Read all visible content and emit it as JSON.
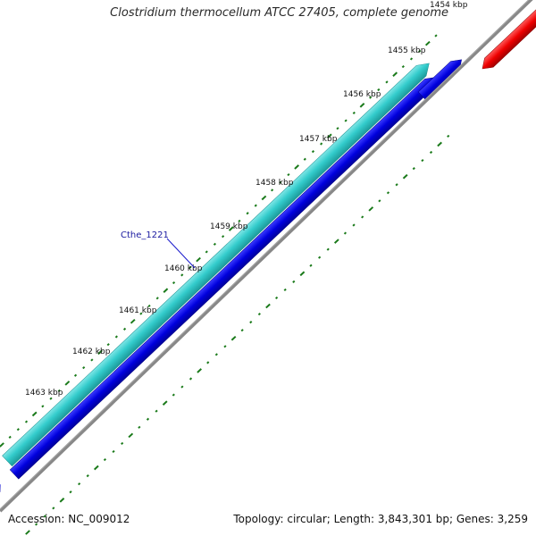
{
  "map": {
    "title": "Clostridium thermocellum ATCC 27405, complete genome",
    "accession_text": "Accession: NC_009012",
    "summary_text": "Topology: circular; Length: 3,843,301 bp; Genes: 3,259"
  },
  "ruler": {
    "ticks": [
      {
        "kbp": 1454,
        "label": "1454 kbp"
      },
      {
        "kbp": 1455,
        "label": "1455 kbp"
      },
      {
        "kbp": 1456,
        "label": "1456 kbp"
      },
      {
        "kbp": 1457,
        "label": "1457 kbp"
      },
      {
        "kbp": 1458,
        "label": "1458 kbp"
      },
      {
        "kbp": 1459,
        "label": "1459 kbp"
      },
      {
        "kbp": 1460,
        "label": "1460 kbp"
      },
      {
        "kbp": 1461,
        "label": "1461 kbp"
      },
      {
        "kbp": 1462,
        "label": "1462 kbp"
      },
      {
        "kbp": 1463,
        "label": "1463 kbp"
      }
    ]
  },
  "genes": [
    {
      "name": "Cthe_1221",
      "label": "Cthe_1221",
      "color": "#33cccc",
      "track": "highlight"
    }
  ],
  "colors": {
    "highlight_gene": "#33cccc",
    "forward_gene": "#0000dd",
    "reverse_gene": "#ee0000",
    "backbone": "#888888",
    "tick_mark": "#1a7a1a",
    "label_line": "#1a1acc"
  }
}
